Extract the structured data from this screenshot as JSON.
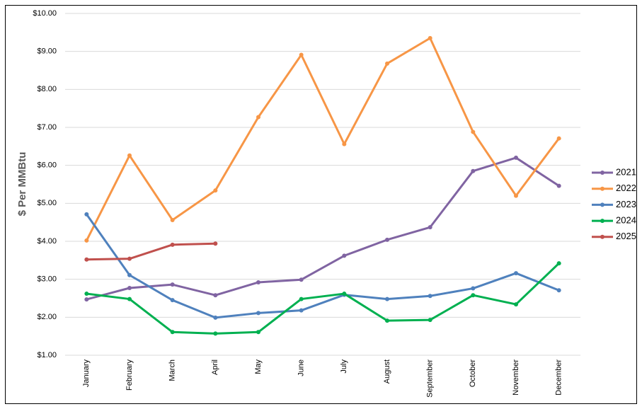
{
  "chart_data": {
    "type": "line",
    "y_label": "$ Per MMBtu",
    "categories": [
      "January",
      "February",
      "March",
      "April",
      "May",
      "June",
      "July",
      "August",
      "September",
      "October",
      "November",
      "December"
    ],
    "series": [
      {
        "name": "2021",
        "color": "#8064a2",
        "values": [
          2.47,
          2.77,
          2.86,
          2.58,
          2.92,
          2.99,
          3.62,
          4.04,
          4.37,
          5.85,
          6.2,
          5.46
        ]
      },
      {
        "name": "2022",
        "color": "#f79646",
        "values": [
          4.02,
          6.26,
          4.56,
          5.34,
          7.27,
          8.91,
          6.56,
          8.68,
          9.35,
          6.88,
          5.2,
          6.71
        ]
      },
      {
        "name": "2023",
        "color": "#4f81bd",
        "values": [
          4.71,
          3.11,
          2.45,
          1.99,
          2.11,
          2.18,
          2.59,
          2.48,
          2.56,
          2.76,
          3.16,
          2.71
        ]
      },
      {
        "name": "2024",
        "color": "#00b050",
        "values": [
          2.62,
          2.48,
          1.61,
          1.57,
          1.61,
          2.48,
          2.62,
          1.91,
          1.93,
          2.58,
          2.34,
          3.42
        ]
      },
      {
        "name": "2025",
        "color": "#c0504d",
        "values": [
          3.52,
          3.54,
          3.91,
          3.94,
          null,
          null,
          null,
          null,
          null,
          null,
          null,
          null
        ]
      }
    ],
    "ylim": [
      1,
      10
    ],
    "yticks": [
      {
        "value": 1,
        "label": "$1.00"
      },
      {
        "value": 2,
        "label": "$2.00"
      },
      {
        "value": 3,
        "label": "$3.00"
      },
      {
        "value": 4,
        "label": "$4.00"
      },
      {
        "value": 5,
        "label": "$5.00"
      },
      {
        "value": 6,
        "label": "$6.00"
      },
      {
        "value": 7,
        "label": "$7.00"
      },
      {
        "value": 8,
        "label": "$8.00"
      },
      {
        "value": 9,
        "label": "$9.00"
      },
      {
        "value": 10,
        "label": "$10.00"
      }
    ],
    "grid": true,
    "legend": "right"
  }
}
